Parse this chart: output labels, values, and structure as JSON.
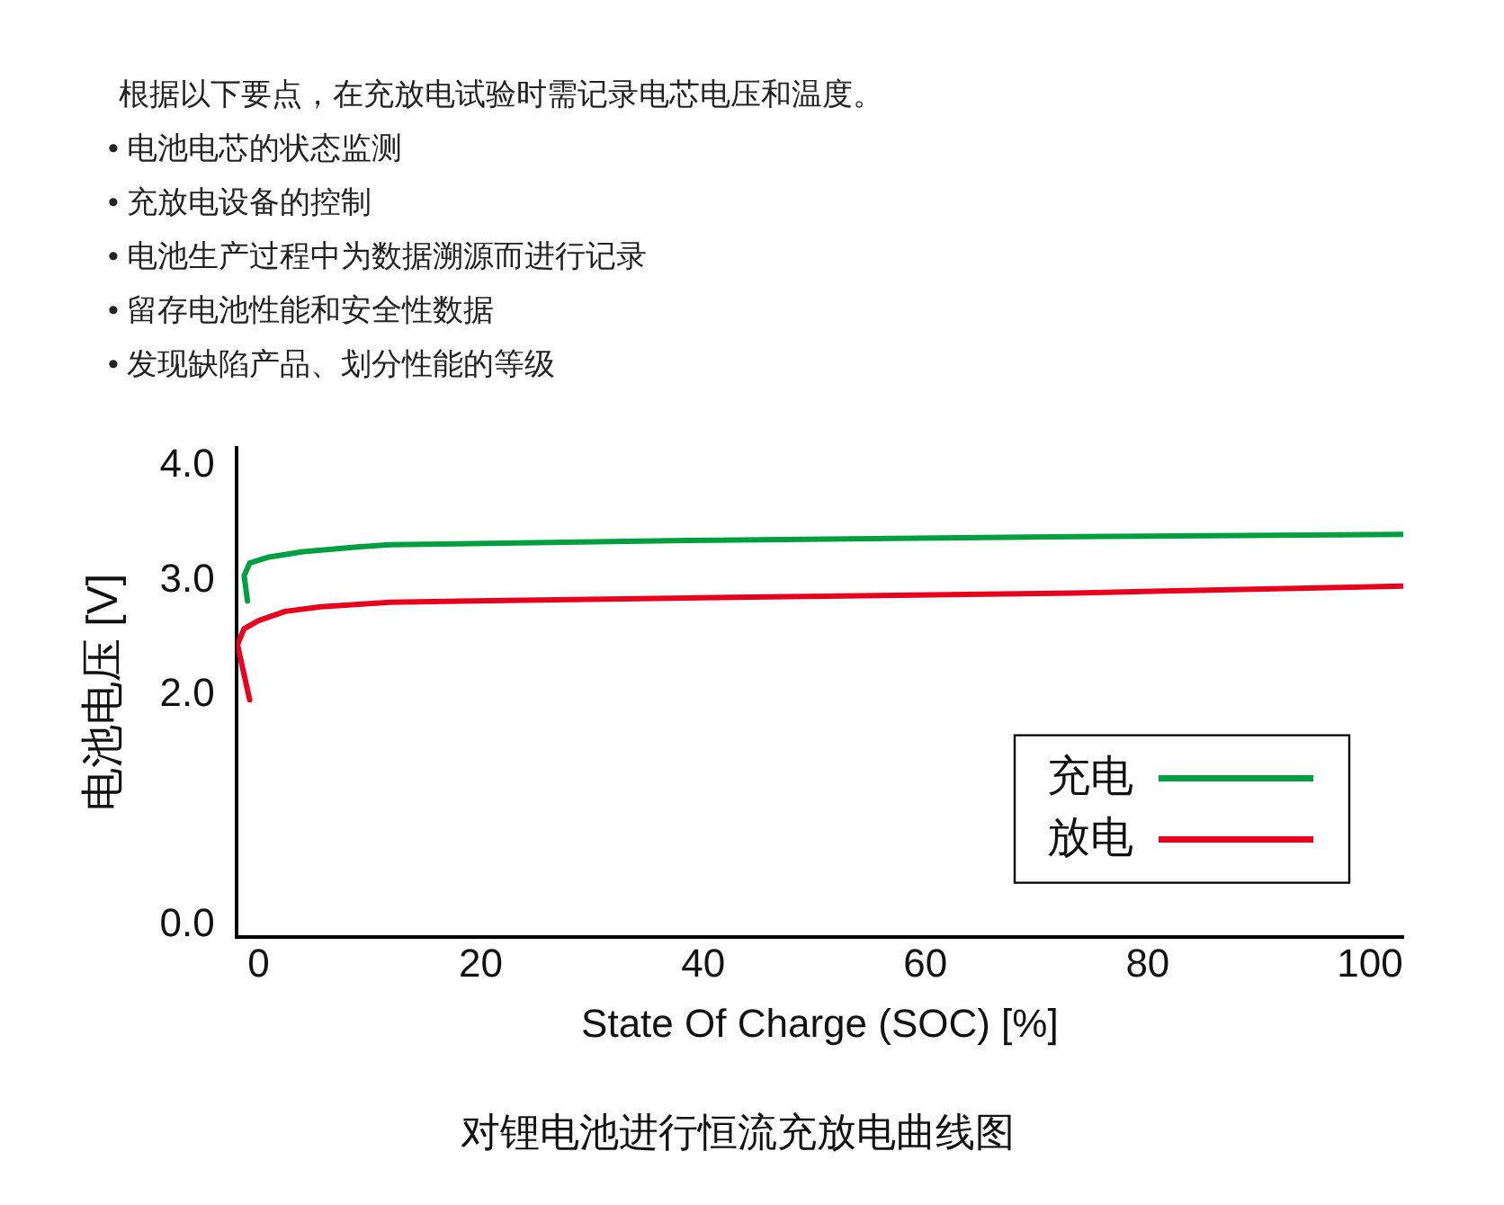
{
  "chart_data": {
    "type": "line",
    "title": "对锂电池进行恒流充放电曲线图",
    "xlabel": "State Of Charge (SOC) [%]",
    "ylabel": "电池电压 [V]",
    "annotations": [
      "根据以下要点，在充放电试验时需记录电芯电压和温度。",
      "• 电池电芯的状态监测",
      "• 充放电设备的控制",
      "• 电池生产过程中为数据溯源而进行记录",
      "• 留存电池性能和安全性数据",
      "• 发现缺陷产品、划分性能的等级"
    ],
    "xlim": [
      -2,
      103
    ],
    "xticks": [
      0,
      20,
      40,
      60,
      80,
      100
    ],
    "ylim": [
      -0.1,
      4.15
    ],
    "yticks": [
      {
        "value": 0,
        "label": "0.0"
      },
      {
        "value": 2,
        "label": "2.0"
      },
      {
        "value": 3,
        "label": "3.0"
      },
      {
        "value": 4,
        "label": "4.0"
      }
    ],
    "grid": false,
    "legend": "bottom right",
    "marker": "none",
    "line_style": "solid",
    "series": [
      {
        "name": "充电",
        "color": "#00a040",
        "x": [
          -1.0,
          -1.3,
          -0.8,
          0.8,
          4,
          8.9,
          11.8,
          41,
          73.4,
          103
        ],
        "values": [
          2.82,
          3.04,
          3.15,
          3.2,
          3.25,
          3.29,
          3.31,
          3.35,
          3.38,
          3.4
        ]
      },
      {
        "name": "放电",
        "color": "#e8001c",
        "x": [
          -0.8,
          -1.9,
          -1.3,
          0,
          2.4,
          5.6,
          11.8,
          41,
          73.4,
          103
        ],
        "values": [
          1.96,
          2.44,
          2.58,
          2.65,
          2.73,
          2.77,
          2.81,
          2.85,
          2.89,
          2.95
        ]
      }
    ]
  }
}
